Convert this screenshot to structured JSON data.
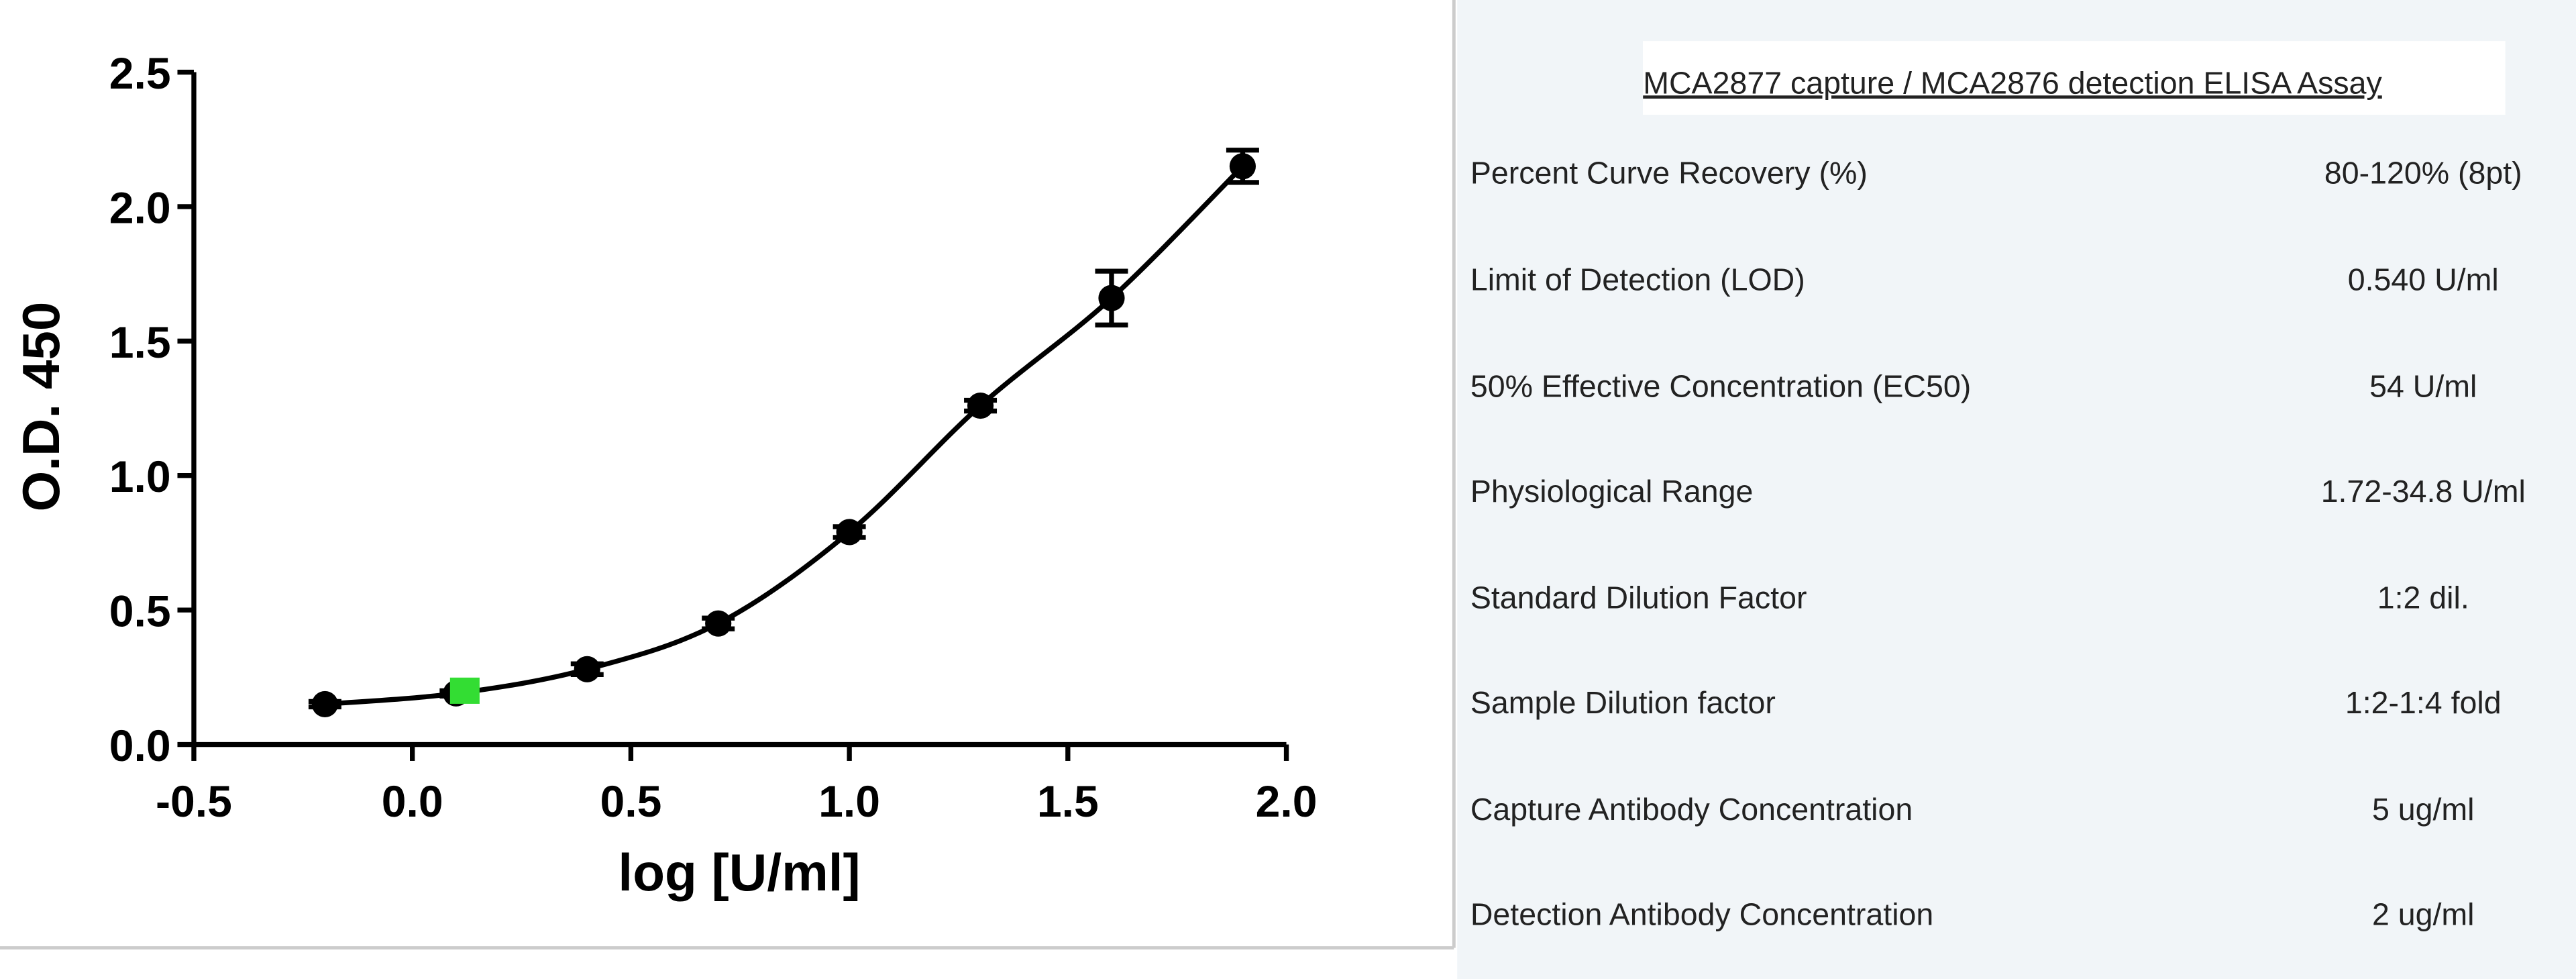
{
  "chart_data": {
    "type": "scatter",
    "x_label": "log [U/ml]",
    "y_label": "O.D. 450",
    "xlim": [
      -0.5,
      2.0
    ],
    "ylim": [
      0,
      2.5
    ],
    "xticks": [
      -0.5,
      {
        "value": 0,
        "label": "0.0"
      },
      0.5,
      {
        "value": 1,
        "label": "1.0"
      },
      1.5,
      {
        "value": 2,
        "label": "2.0"
      }
    ],
    "yticks": [
      {
        "value": 0,
        "label": "0.0"
      },
      0.5,
      {
        "value": 1,
        "label": "1.0"
      },
      1.5,
      {
        "value": 2,
        "label": "2.0"
      },
      2.5
    ],
    "series": [
      {
        "color": "#000000",
        "marker": "circle",
        "curve": true,
        "x": [
          -0.2,
          0.1,
          0.4,
          0.7,
          1.0,
          1.3,
          1.6,
          1.9
        ],
        "values": [
          0.15,
          0.19,
          0.28,
          0.45,
          0.79,
          1.26,
          1.66,
          2.15
        ],
        "errors": [
          0.01,
          0.01,
          0.02,
          0.02,
          0.02,
          0.02,
          0.1,
          0.06
        ]
      },
      {
        "color": "#33dd33",
        "marker": "square",
        "x": [
          0.12
        ],
        "values": [
          0.2
        ]
      }
    ]
  },
  "table": {
    "title": "MCA2877 capture / MCA2876 detection ELISA Assay",
    "rows": [
      [
        "Percent Curve Recovery (%)",
        "80-120% (8pt)"
      ],
      [
        "Limit of Detection (LOD)",
        "0.540 U/ml"
      ],
      [
        "50% Effective Concentration (EC50)",
        "54 U/ml"
      ],
      [
        "Physiological Range",
        "1.72-34.8 U/ml"
      ],
      [
        "Standard Dilution Factor",
        "1:2 dil."
      ],
      [
        "Sample Dilution factor",
        "1:2-1:4 fold"
      ],
      [
        "Capture Antibody Concentration",
        "5 ug/ml"
      ],
      [
        "Detection Antibody Concentration",
        "2 ug/ml"
      ]
    ]
  }
}
